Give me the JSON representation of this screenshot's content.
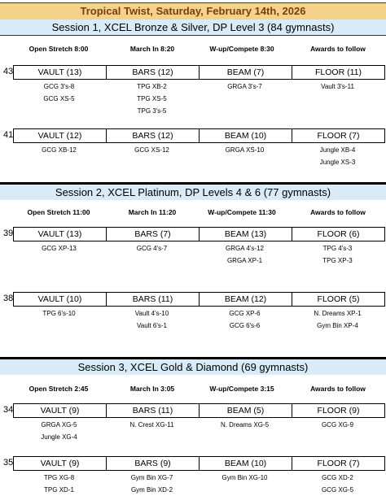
{
  "title": "Tropical Twist, Saturday, February 14th, 2026",
  "headers": [
    "Open Stretch",
    "March In",
    "W-up/Compete",
    "Awards to follow"
  ],
  "sessions": [
    {
      "title": "Session 1, XCEL Bronze & Silver, DP Level 3 (84 gymnasts)",
      "times": [
        "Open Stretch 8:00",
        "March In 8:20",
        "W-up/Compete 8:30",
        "Awards to follow"
      ],
      "rotations": [
        {
          "num": "43",
          "events": [
            "VAULT (13)",
            "BARS (12)",
            "BEAM (7)",
            "FLOOR (11)"
          ],
          "teams": [
            [
              "GCG 3's-8",
              "GCG XS-5"
            ],
            [
              "TPG XB-2",
              "TPG XS-5",
              "TPG 3's-5"
            ],
            [
              "GRGA 3's-7"
            ],
            [
              "Vault 3's-11"
            ]
          ]
        },
        {
          "num": "41",
          "events": [
            "VAULT (12)",
            "BARS (12)",
            "BEAM (10)",
            "FLOOR (7)"
          ],
          "teams": [
            [
              "GCG XB-12"
            ],
            [
              "GCG XS-12"
            ],
            [
              "GRGA XS-10"
            ],
            [
              "Jungle XB-4",
              "Jungle XS-3"
            ]
          ]
        }
      ]
    },
    {
      "title": "Session 2, XCEL Platinum, DP Levels 4 & 6 (77 gymnasts)",
      "times": [
        "Open Stretch 11:00",
        "March In 11:20",
        "W-up/Compete 11:30",
        "Awards to follow"
      ],
      "rotations": [
        {
          "num": "39",
          "events": [
            "VAULT (13)",
            "BARS (7)",
            "BEAM (13)",
            "FLOOR (6)"
          ],
          "teams": [
            [
              "GCG XP-13"
            ],
            [
              "GCG 4's-7"
            ],
            [
              "GRGA 4's-12",
              "GRGA XP-1"
            ],
            [
              "TPG 4's-3",
              "TPG XP-3"
            ]
          ]
        },
        {
          "num": "38",
          "events": [
            "VAULT (10)",
            "BARS (11)",
            "BEAM (12)",
            "FLOOR (5)"
          ],
          "teams": [
            [
              "TPG 6's-10"
            ],
            [
              "Vault 4's-10",
              "Vault 6's-1"
            ],
            [
              "GCG XP-6",
              "GCG 6's-6"
            ],
            [
              "N. Dreams XP-1",
              "Gym Bin XP-4"
            ]
          ]
        }
      ]
    },
    {
      "title": "Session 3, XCEL Gold & Diamond (69 gymnasts)",
      "times": [
        "Open Stretch 2:45",
        "March In 3:05",
        "W-up/Compete 3:15",
        "Awards to follow"
      ],
      "rotations": [
        {
          "num": "34",
          "events": [
            "VAULT (9)",
            "BARS (11)",
            "BEAM (5)",
            "FLOOR (9)"
          ],
          "teams": [
            [
              "GRGA XG-5",
              "Jungle XG-4"
            ],
            [
              "N. Crest XG-11"
            ],
            [
              "N. Dreams XG-5"
            ],
            [
              "GCG XG-9"
            ]
          ]
        },
        {
          "num": "35",
          "events": [
            "VAULT (9)",
            "BARS (9)",
            "BEAM (10)",
            "FLOOR (7)"
          ],
          "teams": [
            [
              "TPG XG-8",
              "TPG XD-1"
            ],
            [
              "Gym Bin XG-7",
              "Gym Bin XD-2"
            ],
            [
              "Gym Bin XG-10"
            ],
            [
              "GCG XD-2",
              "GCG XG-5"
            ]
          ]
        }
      ]
    }
  ]
}
